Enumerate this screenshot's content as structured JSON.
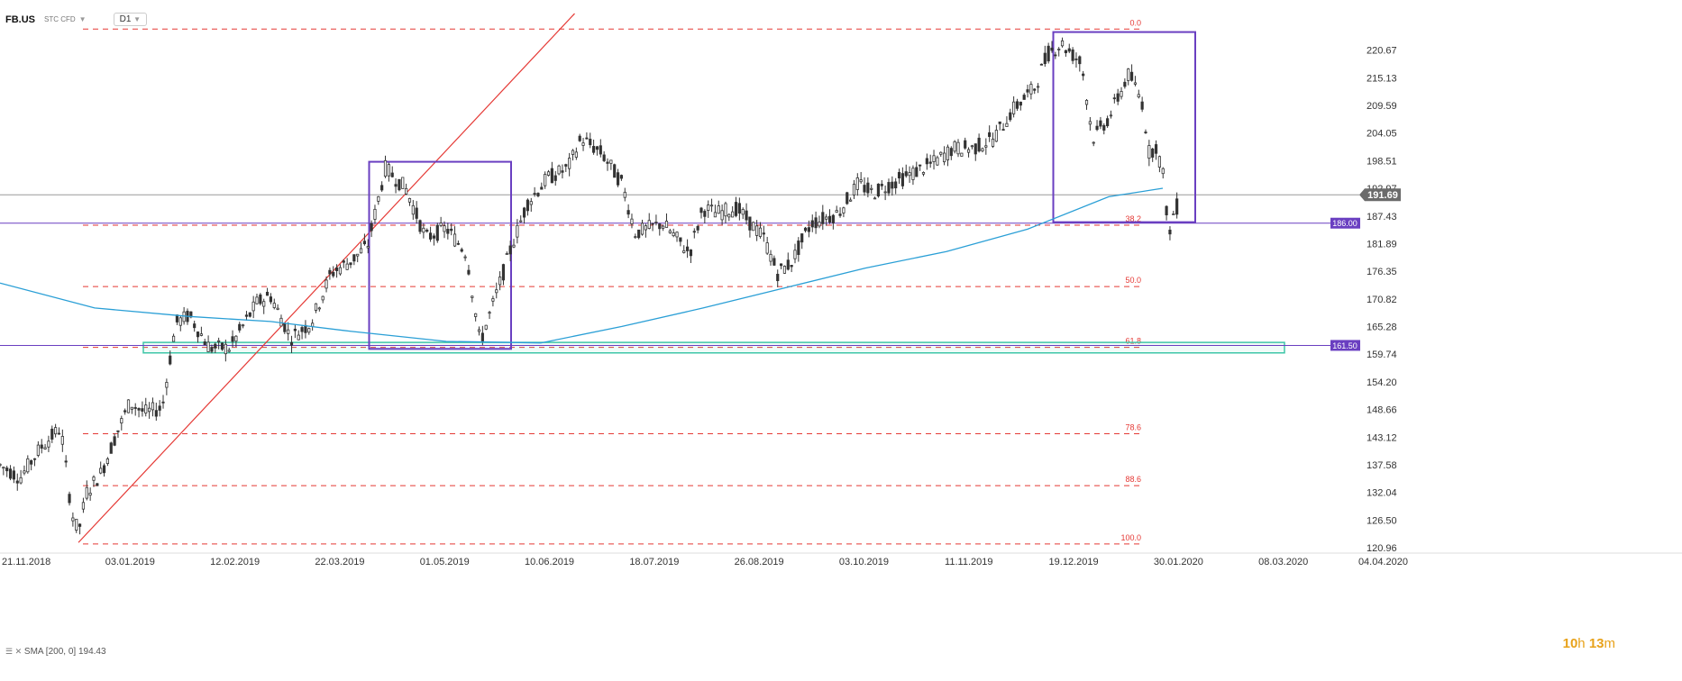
{
  "header": {
    "symbol": "FB.US",
    "subtype": "STC CFD",
    "timeframe": "D1"
  },
  "sma_label": "SMA [200, 0] 194.43",
  "timer": {
    "h": "10",
    "h_unit": "h",
    "m": "13",
    "m_unit": "m"
  },
  "colors": {
    "candle_up": "#ffffff",
    "candle_down": "#333333",
    "wick": "#333333",
    "sma": "#2a9fd6",
    "fib": "#e53935",
    "trendline": "#e53935",
    "box": "#6a3fc1",
    "zone": "#3fc6a8",
    "hline": "#6a3fc1",
    "price_tag": "#6a3fc1",
    "current_tag": "#6b6b6b"
  },
  "chart_data": {
    "type": "candlestick",
    "title": "FB.US D1",
    "ylim": [
      120.96,
      226.21
    ],
    "y_ticks": [
      "220.67",
      "215.13",
      "209.59",
      "204.05",
      "198.51",
      "192.97",
      "187.43",
      "181.89",
      "176.35",
      "170.82",
      "165.28",
      "159.74",
      "154.20",
      "148.66",
      "143.12",
      "137.58",
      "132.04",
      "126.50",
      "120.96"
    ],
    "x_ticks": [
      "21.11.2018",
      "03.01.2019",
      "12.02.2019",
      "22.03.2019",
      "01.05.2019",
      "10.06.2019",
      "18.07.2019",
      "26.08.2019",
      "03.10.2019",
      "11.11.2019",
      "19.12.2019",
      "30.01.2020",
      "08.03.2020",
      "04.04.2020"
    ],
    "current_price": "191.69",
    "horizontal_lines": [
      {
        "label": "186.00",
        "value": 186.0
      },
      {
        "label": "161.50",
        "value": 161.5
      }
    ],
    "sma": {
      "name": "SMA [200, 0]",
      "last_value": 194.43,
      "points": [
        [
          0,
          174.0
        ],
        [
          0.07,
          169.0
        ],
        [
          0.14,
          167.3
        ],
        [
          0.2,
          166.3
        ],
        [
          0.26,
          164.3
        ],
        [
          0.33,
          162.3
        ],
        [
          0.4,
          162.0
        ],
        [
          0.46,
          165.3
        ],
        [
          0.52,
          169.0
        ],
        [
          0.58,
          173.0
        ],
        [
          0.64,
          177.0
        ],
        [
          0.7,
          180.3
        ],
        [
          0.76,
          184.8
        ],
        [
          0.82,
          191.3
        ],
        [
          0.86,
          193.0
        ]
      ]
    },
    "fibonacci": {
      "levels": [
        {
          "label": "0.0",
          "price": 224.9
        },
        {
          "label": "38.2",
          "price": 185.6
        },
        {
          "label": "50.0",
          "price": 173.3
        },
        {
          "label": "61.8",
          "price": 161.1
        },
        {
          "label": "78.6",
          "price": 143.8
        },
        {
          "label": "88.6",
          "price": 133.4
        },
        {
          "label": "100.0",
          "price": 121.7
        }
      ]
    },
    "trendline": [
      [
        0.058,
        122.0
      ],
      [
        0.425,
        228.0
      ]
    ],
    "boxes": [
      {
        "x0": 0.273,
        "x1": 0.378,
        "y0": 160.8,
        "y1": 198.3
      },
      {
        "x0": 0.779,
        "x1": 0.884,
        "y0": 186.2,
        "y1": 224.3
      }
    ],
    "zones": [
      {
        "x0": 0.106,
        "x1": 0.95,
        "y0": 160.0,
        "y1": 162.1
      }
    ],
    "series_anchors": [
      [
        0,
        137.5
      ],
      [
        0.015,
        135
      ],
      [
        0.03,
        141
      ],
      [
        0.045,
        145
      ],
      [
        0.053,
        128
      ],
      [
        0.058,
        124
      ],
      [
        0.064,
        132
      ],
      [
        0.075,
        136
      ],
      [
        0.085,
        143
      ],
      [
        0.096,
        150
      ],
      [
        0.107,
        148
      ],
      [
        0.12,
        149
      ],
      [
        0.13,
        166
      ],
      [
        0.14,
        167.5
      ],
      [
        0.155,
        161
      ],
      [
        0.17,
        161
      ],
      [
        0.19,
        170
      ],
      [
        0.2,
        171.5
      ],
      [
        0.215,
        163
      ],
      [
        0.23,
        166
      ],
      [
        0.245,
        176
      ],
      [
        0.26,
        178.5
      ],
      [
        0.272,
        181.5
      ],
      [
        0.285,
        197
      ],
      [
        0.3,
        193
      ],
      [
        0.315,
        183
      ],
      [
        0.33,
        185
      ],
      [
        0.345,
        180
      ],
      [
        0.355,
        162
      ],
      [
        0.365,
        170
      ],
      [
        0.378,
        181
      ],
      [
        0.39,
        190
      ],
      [
        0.405,
        195
      ],
      [
        0.42,
        197
      ],
      [
        0.43,
        203
      ],
      [
        0.445,
        200
      ],
      [
        0.46,
        194
      ],
      [
        0.47,
        184
      ],
      [
        0.49,
        186
      ],
      [
        0.51,
        180
      ],
      [
        0.52,
        189
      ],
      [
        0.53,
        188
      ],
      [
        0.545,
        189
      ],
      [
        0.565,
        183
      ],
      [
        0.575,
        176
      ],
      [
        0.585,
        178
      ],
      [
        0.6,
        186
      ],
      [
        0.62,
        188
      ],
      [
        0.635,
        194
      ],
      [
        0.645,
        192
      ],
      [
        0.66,
        194
      ],
      [
        0.675,
        196
      ],
      [
        0.69,
        198
      ],
      [
        0.705,
        201
      ],
      [
        0.72,
        201
      ],
      [
        0.735,
        203
      ],
      [
        0.75,
        209
      ],
      [
        0.765,
        213
      ],
      [
        0.775,
        220
      ],
      [
        0.785,
        222
      ],
      [
        0.8,
        218
      ],
      [
        0.808,
        203
      ],
      [
        0.82,
        207
      ],
      [
        0.835,
        216
      ],
      [
        0.845,
        210
      ],
      [
        0.85,
        200
      ],
      [
        0.855,
        201.5
      ],
      [
        0.86,
        196
      ],
      [
        0.865,
        183
      ],
      [
        0.869,
        190
      ],
      [
        0.873,
        188
      ]
    ]
  }
}
